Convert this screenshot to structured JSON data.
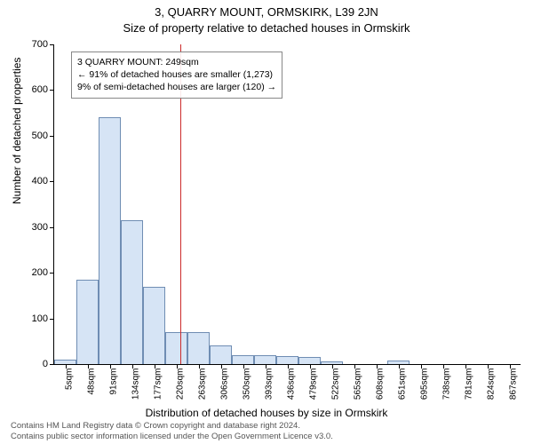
{
  "titles": {
    "line1": "3, QUARRY MOUNT, ORMSKIRK, L39 2JN",
    "line2": "Size of property relative to detached houses in Ormskirk"
  },
  "axes": {
    "ylabel": "Number of detached properties",
    "xlabel": "Distribution of detached houses by size in Ormskirk",
    "ylim": [
      0,
      700
    ],
    "ytick_step": 100,
    "yticks": [
      0,
      100,
      200,
      300,
      400,
      500,
      600,
      700
    ],
    "label_fontsize": 12,
    "tick_fontsize": 11
  },
  "chart": {
    "type": "histogram",
    "bar_color": "#d6e4f5",
    "bar_border_color": "#6f8db3",
    "bar_border_width": 1,
    "background_color": "#ffffff",
    "categories": [
      "5sqm",
      "48sqm",
      "91sqm",
      "134sqm",
      "177sqm",
      "220sqm",
      "263sqm",
      "306sqm",
      "350sqm",
      "393sqm",
      "436sqm",
      "479sqm",
      "522sqm",
      "565sqm",
      "608sqm",
      "651sqm",
      "695sqm",
      "738sqm",
      "781sqm",
      "824sqm",
      "867sqm"
    ],
    "values": [
      10,
      185,
      540,
      315,
      170,
      70,
      70,
      40,
      20,
      20,
      18,
      15,
      6,
      0,
      0,
      8,
      0,
      0,
      0,
      0,
      0
    ]
  },
  "marker": {
    "color": "#cc2b2b",
    "width": 1,
    "category_index_after": 5,
    "fractional_offset": 0.67
  },
  "annotation": {
    "line1": "3 QUARRY MOUNT: 249sqm",
    "line2": "← 91% of detached houses are smaller (1,273)",
    "line3": "9% of semi-detached houses are larger (120) →",
    "fontsize": 10.5,
    "border_color": "#888888"
  },
  "credit": {
    "line1": "Contains HM Land Registry data © Crown copyright and database right 2024.",
    "line2": "Contains public sector information licensed under the Open Government Licence v3.0.",
    "color": "#555555",
    "fontsize": 9.5
  }
}
